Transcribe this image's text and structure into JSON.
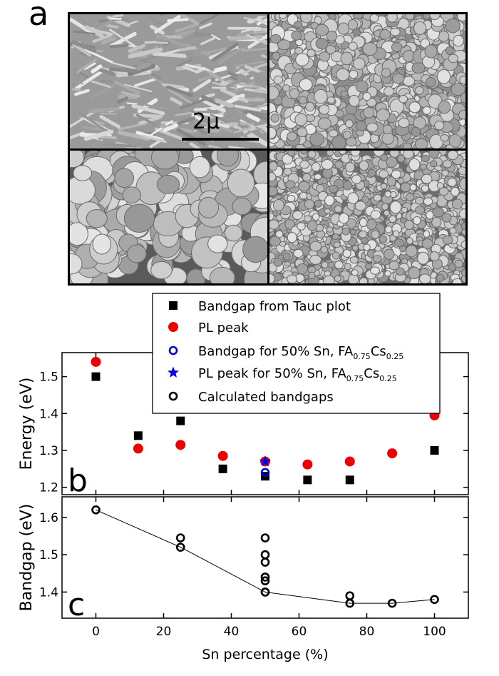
{
  "figure": {
    "panel_a_label": "a",
    "scale_bar_label": "2μ",
    "micrographs": [
      "sem-micrograph-top-left",
      "sem-micrograph-top-right",
      "sem-micrograph-bottom-left",
      "sem-micrograph-bottom-right"
    ]
  },
  "chart_data": [
    {
      "type": "scatter",
      "panel_label": "b",
      "ylabel": "Energy (eV)",
      "xlabel": "",
      "xlim": [
        -10,
        110
      ],
      "ylim": [
        1.18,
        1.565
      ],
      "yticks": [
        1.2,
        1.3,
        1.4,
        1.5
      ],
      "ytick_labels": [
        "1.2",
        "1.3",
        "1.4",
        "1.5"
      ],
      "legend_position": "top (above plot)",
      "series": [
        {
          "name": "Bandgap from Tauc plot",
          "marker": "square",
          "color": "#000000",
          "x": [
            0,
            12.5,
            25,
            37.5,
            50,
            62.5,
            75,
            100
          ],
          "y": [
            1.5,
            1.34,
            1.38,
            1.25,
            1.23,
            1.22,
            1.22,
            1.3
          ]
        },
        {
          "name": "PL peak",
          "marker": "circle",
          "color": "#ee0000",
          "x": [
            0,
            12.5,
            25,
            37.5,
            50,
            62.5,
            75,
            87.5,
            100
          ],
          "y": [
            1.54,
            1.305,
            1.315,
            1.285,
            1.27,
            1.262,
            1.27,
            1.292,
            1.395
          ]
        },
        {
          "name_parts": [
            "Bandgap for 50% Sn, FA",
            "0.75",
            "Cs",
            "0.25"
          ],
          "marker": "open-circle",
          "color": "#0000cc",
          "x": [
            50
          ],
          "y": [
            1.24
          ]
        },
        {
          "name_parts": [
            "PL peak for 50% Sn, FA",
            "0.75",
            "Cs",
            "0.25"
          ],
          "marker": "star",
          "color": "#0000ee",
          "x": [
            50
          ],
          "y": [
            1.27
          ]
        },
        {
          "name": "Calculated bandgaps",
          "marker": "open-circle",
          "color": "#000000",
          "x": [],
          "y": []
        }
      ]
    },
    {
      "type": "scatter",
      "panel_label": "c",
      "ylabel": "Bandgap (eV)",
      "xlabel": "Sn percentage (%)",
      "xlim": [
        -10,
        110
      ],
      "ylim": [
        1.33,
        1.655
      ],
      "xticks": [
        0,
        20,
        40,
        60,
        80,
        100
      ],
      "xtick_labels": [
        "0",
        "20",
        "40",
        "60",
        "80",
        "100"
      ],
      "yticks": [
        1.4,
        1.5,
        1.6
      ],
      "ytick_labels": [
        "1.4",
        "1.5",
        "1.6"
      ],
      "series": [
        {
          "name": "Calculated bandgaps",
          "marker": "open-circle",
          "color": "#000000",
          "x": [
            0,
            25,
            25,
            50,
            50,
            50,
            50,
            50,
            50,
            50,
            75,
            75,
            87.5,
            100
          ],
          "y": [
            1.62,
            1.545,
            1.52,
            1.545,
            1.5,
            1.48,
            1.44,
            1.43,
            1.4,
            1.4,
            1.39,
            1.37,
            1.37,
            1.38
          ]
        },
        {
          "name": "trend",
          "marker": "line",
          "color": "#000000",
          "x": [
            0,
            25,
            50,
            75,
            87.5,
            100
          ],
          "y": [
            1.62,
            1.52,
            1.4,
            1.37,
            1.37,
            1.38
          ]
        }
      ]
    }
  ]
}
